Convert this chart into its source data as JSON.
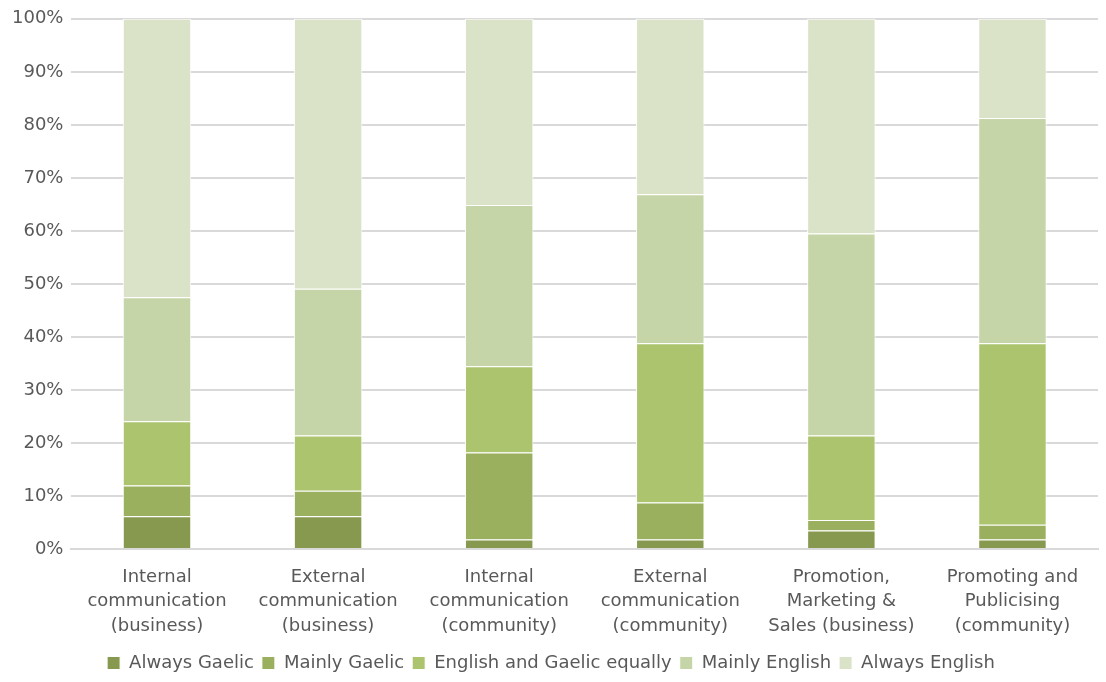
{
  "chart_data": {
    "type": "bar",
    "stacked": true,
    "legend": "bottom",
    "grid": "y",
    "categories": [
      "Internal communication (business)",
      "External communication (business)",
      "Internal communication (community)",
      "External communication (community)",
      "Promotion, Marketing & Sales (business)",
      "Promoting and Publicising (community)"
    ],
    "series": [
      {
        "name": "Always Gaelic",
        "color": "#87994f",
        "values": [
          6.2,
          6.2,
          1.8,
          1.8,
          3.5,
          1.8
        ]
      },
      {
        "name": "Mainly Gaelic",
        "color": "#9bb05e",
        "values": [
          5.8,
          4.8,
          16.4,
          7.0,
          2.0,
          2.8
        ]
      },
      {
        "name": "English and Gaelic equally",
        "color": "#adc46f",
        "values": [
          12.1,
          10.4,
          16.3,
          30.0,
          15.9,
          34.2
        ]
      },
      {
        "name": "Mainly English",
        "color": "#c6d5a8",
        "values": [
          23.4,
          27.7,
          30.4,
          28.1,
          38.1,
          42.5
        ]
      },
      {
        "name": "Always English",
        "color": "#dae3c8",
        "values": [
          52.5,
          50.9,
          35.1,
          33.1,
          40.5,
          18.7
        ]
      }
    ],
    "ylim": [
      0,
      100
    ],
    "yticks": [
      {
        "value": 0,
        "label": "0%"
      },
      {
        "value": 10,
        "label": "10%"
      },
      {
        "value": 20,
        "label": "20%"
      },
      {
        "value": 30,
        "label": "30%"
      },
      {
        "value": 40,
        "label": "40%"
      },
      {
        "value": 50,
        "label": "50%"
      },
      {
        "value": 60,
        "label": "60%"
      },
      {
        "value": 70,
        "label": "70%"
      },
      {
        "value": 80,
        "label": "80%"
      },
      {
        "value": 90,
        "label": "90%"
      },
      {
        "value": 100,
        "label": "100%"
      }
    ]
  }
}
